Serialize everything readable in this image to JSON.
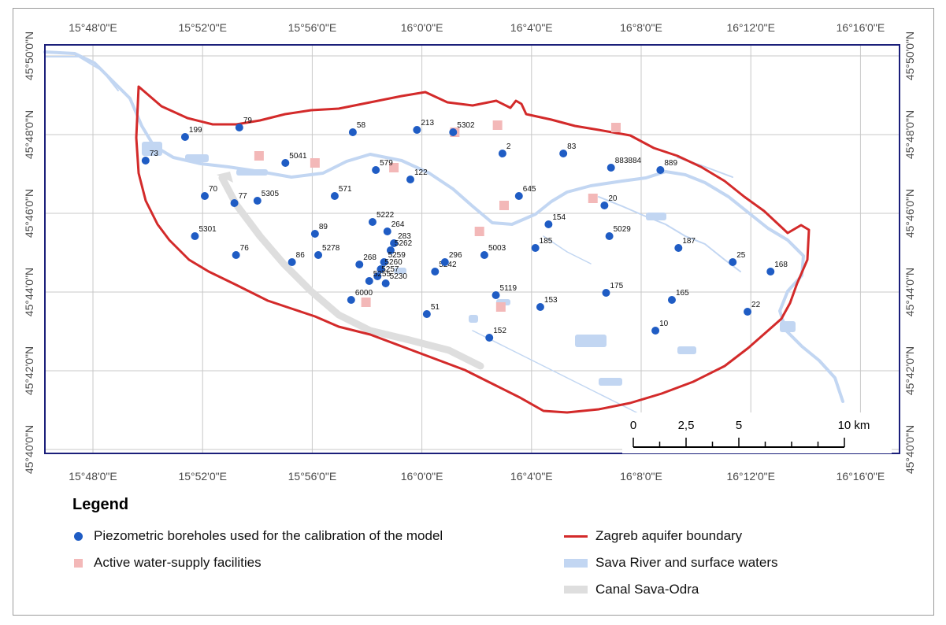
{
  "map": {
    "top_lon_labels": [
      "15°48'0\"E",
      "15°52'0\"E",
      "15°56'0\"E",
      "16°0'0\"E",
      "16°4'0\"E",
      "16°8'0\"E",
      "16°12'0\"E",
      "16°16'0\"E"
    ],
    "bottom_lon_labels": [
      "15°48'0\"E",
      "15°52'0\"E",
      "15°56'0\"E",
      "16°0'0\"E",
      "16°4'0\"E",
      "16°8'0\"E",
      "16°12'0\"E",
      "16°16'0\"E"
    ],
    "left_lat_labels": [
      "45°50'0\"N",
      "45°48'0\"N",
      "45°46'0\"N",
      "45°44'0\"N",
      "45°42'0\"N",
      "45°40'0\"N"
    ],
    "right_lat_labels": [
      "45°50'0\"N",
      "45°48'0\"N",
      "45°46'0\"N",
      "45°44'0\"N",
      "45°42'0\"N",
      "45°40'0\"N"
    ],
    "scale_bar": {
      "ticks": [
        "0",
        "2,5",
        "5",
        "10 km"
      ]
    },
    "colors": {
      "boundary": "#d32a2a",
      "borehole": "#1f5cc4",
      "water": "#c2d6f2",
      "facility": "#f3b8b8",
      "canal": "#dedede",
      "frame": "#1b1f7a",
      "grid": "#c8c8c8"
    },
    "boreholes": [
      {
        "id": "199",
        "lon": 15.856,
        "lat": 45.799
      },
      {
        "id": "79",
        "lon": 15.889,
        "lat": 45.803
      },
      {
        "id": "73",
        "lon": 15.832,
        "lat": 45.789
      },
      {
        "id": "58",
        "lon": 15.958,
        "lat": 45.801
      },
      {
        "id": "213",
        "lon": 15.997,
        "lat": 45.802
      },
      {
        "id": "5302",
        "lon": 16.019,
        "lat": 45.801
      },
      {
        "id": "2",
        "lon": 16.049,
        "lat": 45.792
      },
      {
        "id": "83",
        "lon": 16.086,
        "lat": 45.792
      },
      {
        "id": "883884",
        "lon": 16.115,
        "lat": 45.786
      },
      {
        "id": "889",
        "lon": 16.145,
        "lat": 45.785
      },
      {
        "id": "5041",
        "lon": 15.917,
        "lat": 45.788
      },
      {
        "id": "579",
        "lon": 15.972,
        "lat": 45.785
      },
      {
        "id": "122",
        "lon": 15.993,
        "lat": 45.781
      },
      {
        "id": "645",
        "lon": 16.059,
        "lat": 45.774
      },
      {
        "id": "20",
        "lon": 16.111,
        "lat": 45.77
      },
      {
        "id": "70",
        "lon": 15.868,
        "lat": 45.774
      },
      {
        "id": "77",
        "lon": 15.886,
        "lat": 45.771
      },
      {
        "id": "5305",
        "lon": 15.9,
        "lat": 45.772
      },
      {
        "id": "571",
        "lon": 15.947,
        "lat": 45.774
      },
      {
        "id": "5222",
        "lon": 15.97,
        "lat": 45.763
      },
      {
        "id": "154",
        "lon": 16.077,
        "lat": 45.762
      },
      {
        "id": "5029",
        "lon": 16.114,
        "lat": 45.757
      },
      {
        "id": "187",
        "lon": 16.156,
        "lat": 45.752
      },
      {
        "id": "5301",
        "lon": 15.862,
        "lat": 45.757
      },
      {
        "id": "89",
        "lon": 15.935,
        "lat": 45.758
      },
      {
        "id": "264",
        "lon": 15.979,
        "lat": 45.759
      },
      {
        "id": "283",
        "lon": 15.983,
        "lat": 45.754
      },
      {
        "id": "5262",
        "lon": 15.981,
        "lat": 45.751
      },
      {
        "id": "185",
        "lon": 16.069,
        "lat": 45.752
      },
      {
        "id": "5003",
        "lon": 16.038,
        "lat": 45.749
      },
      {
        "id": "25",
        "lon": 16.189,
        "lat": 45.746
      },
      {
        "id": "168",
        "lon": 16.212,
        "lat": 45.742
      },
      {
        "id": "76",
        "lon": 15.887,
        "lat": 45.749
      },
      {
        "id": "86",
        "lon": 15.921,
        "lat": 45.746
      },
      {
        "id": "5278",
        "lon": 15.937,
        "lat": 45.749
      },
      {
        "id": "268",
        "lon": 15.962,
        "lat": 45.745
      },
      {
        "id": "5259",
        "lon": 15.977,
        "lat": 45.746
      },
      {
        "id": "5242",
        "lon": 16.008,
        "lat": 45.742
      },
      {
        "id": "296",
        "lon": 16.014,
        "lat": 45.746
      },
      {
        "id": "5260",
        "lon": 15.975,
        "lat": 45.743
      },
      {
        "id": "5257",
        "lon": 15.973,
        "lat": 45.74
      },
      {
        "id": "5255",
        "lon": 15.968,
        "lat": 45.738
      },
      {
        "id": "5230",
        "lon": 15.978,
        "lat": 45.737
      },
      {
        "id": "6000",
        "lon": 15.957,
        "lat": 45.73
      },
      {
        "id": "5119",
        "lon": 16.045,
        "lat": 45.732
      },
      {
        "id": "175",
        "lon": 16.112,
        "lat": 45.733
      },
      {
        "id": "165",
        "lon": 16.152,
        "lat": 45.73
      },
      {
        "id": "51",
        "lon": 16.003,
        "lat": 45.724
      },
      {
        "id": "153",
        "lon": 16.072,
        "lat": 45.727
      },
      {
        "id": "22",
        "lon": 16.198,
        "lat": 45.725
      },
      {
        "id": "10",
        "lon": 16.142,
        "lat": 45.717
      },
      {
        "id": "152",
        "lon": 16.041,
        "lat": 45.714
      }
    ],
    "facilities": [
      {
        "lon": 15.901,
        "lat": 45.791
      },
      {
        "lon": 15.935,
        "lat": 45.788
      },
      {
        "lon": 15.983,
        "lat": 45.786
      },
      {
        "lon": 16.02,
        "lat": 45.801
      },
      {
        "lon": 16.046,
        "lat": 45.804
      },
      {
        "lon": 16.118,
        "lat": 45.803
      },
      {
        "lon": 16.05,
        "lat": 45.77
      },
      {
        "lon": 16.035,
        "lat": 45.759
      },
      {
        "lon": 16.104,
        "lat": 45.773
      },
      {
        "lon": 16.048,
        "lat": 45.727
      },
      {
        "lon": 15.966,
        "lat": 45.729
      }
    ]
  },
  "legend": {
    "title": "Legend",
    "boreholes_label": "Piezometric boreholes used for the calibration of the model",
    "facilities_label": "Active water-supply facilities",
    "boundary_label": "Zagreb aquifer boundary",
    "water_label": "Sava River and surface waters",
    "canal_label": "Canal Sava-Odra"
  }
}
